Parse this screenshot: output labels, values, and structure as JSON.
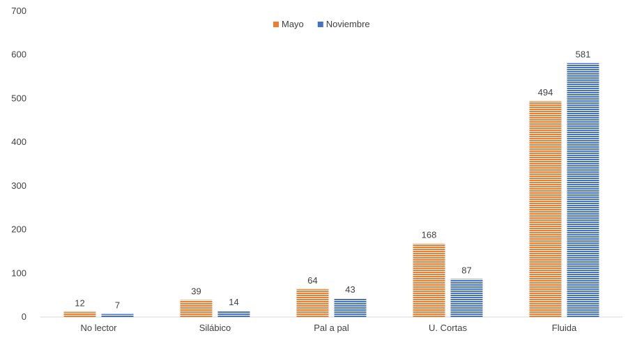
{
  "chart_data": {
    "type": "bar",
    "title": "",
    "xlabel": "",
    "ylabel": "",
    "categories": [
      "No lector",
      "Silábico",
      "Pal a pal",
      "U. Cortas",
      "Fluida"
    ],
    "series": [
      {
        "name": "Mayo",
        "color": "#ED7D31",
        "values": [
          12,
          39,
          64,
          168,
          494
        ]
      },
      {
        "name": "Noviembre",
        "color": "#4472C4",
        "values": [
          7,
          14,
          43,
          87,
          581
        ]
      }
    ],
    "ylim": [
      0,
      700
    ],
    "yticks": [
      0,
      100,
      200,
      300,
      400,
      500,
      600,
      700
    ],
    "grid": false,
    "legend_position": "top-center",
    "bar_pattern": "horizontal-stripes"
  }
}
